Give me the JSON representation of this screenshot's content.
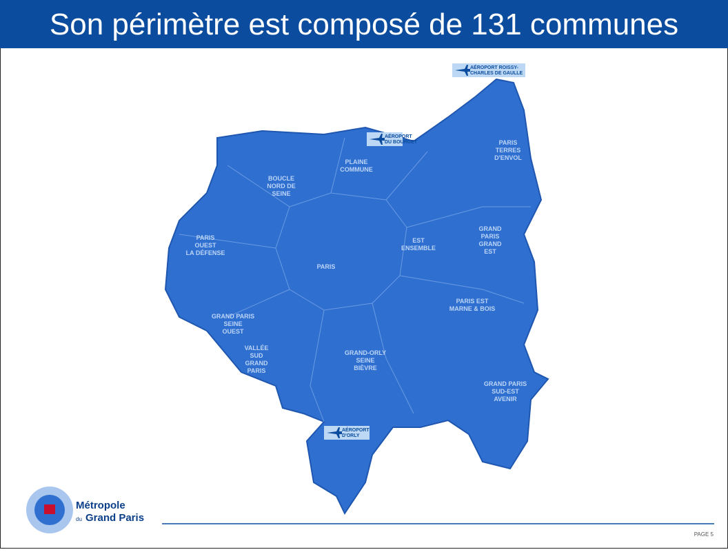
{
  "header": {
    "title": "Son périmètre est composé de 131 communes"
  },
  "map": {
    "territories": [
      {
        "lines": [
          "PLAINE",
          "COMMUNE"
        ]
      },
      {
        "lines": [
          "BOUCLE",
          "NORD DE",
          "SEINE"
        ]
      },
      {
        "lines": [
          "PARIS",
          "TERRES",
          "D'ENVOL"
        ]
      },
      {
        "lines": [
          "PARIS",
          "OUEST",
          "LA DÉFENSE"
        ]
      },
      {
        "lines": [
          "EST",
          "ENSEMBLE"
        ]
      },
      {
        "lines": [
          "GRAND",
          "PARIS",
          "GRAND",
          "EST"
        ]
      },
      {
        "lines": [
          "PARIS"
        ]
      },
      {
        "lines": [
          "PARIS EST",
          "MARNE & BOIS"
        ]
      },
      {
        "lines": [
          "GRAND PARIS",
          "SEINE",
          "OUEST"
        ]
      },
      {
        "lines": [
          "VALLÉE",
          "SUD",
          "GRAND",
          "PARIS"
        ]
      },
      {
        "lines": [
          "GRAND-ORLY",
          "SEINE",
          "BIÈVRE"
        ]
      },
      {
        "lines": [
          "GRAND PARIS",
          "SUD-EST",
          "AVENIR"
        ]
      }
    ],
    "airports": [
      {
        "lines": [
          "AÉROPORT ROISSY-",
          "CHARLES DE GAULLE"
        ]
      },
      {
        "lines": [
          "AÉROPORT",
          "DU BOURGET"
        ]
      },
      {
        "lines": [
          "AÉROPORT",
          "D'ORLY"
        ]
      }
    ]
  },
  "logo": {
    "line1": "Métropole",
    "prefix": "du",
    "line2": "Grand Paris"
  },
  "footer": {
    "page": "PAGE 5"
  }
}
